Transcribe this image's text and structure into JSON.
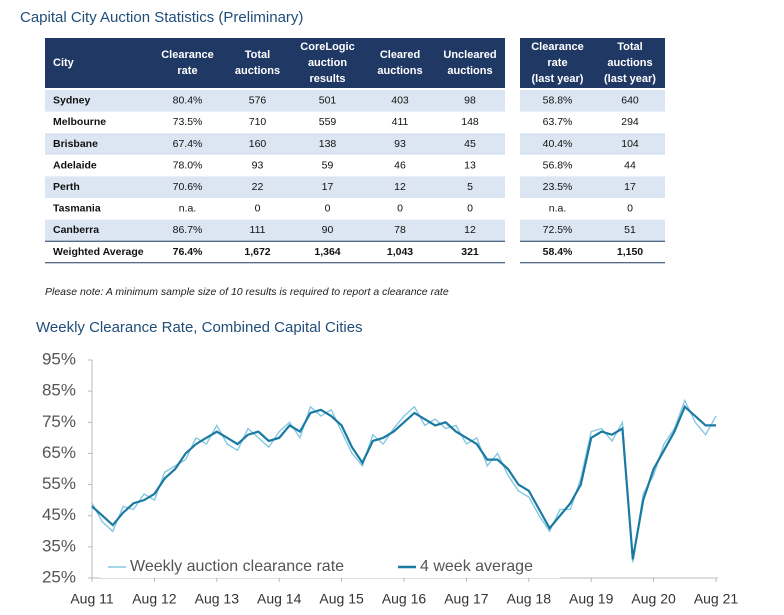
{
  "title": "Capital City Auction Statistics (Preliminary)",
  "table": {
    "headers": [
      [
        "City"
      ],
      [
        "Clearance",
        "rate"
      ],
      [
        "Total",
        "auctions"
      ],
      [
        "CoreLogic",
        "auction",
        "results"
      ],
      [
        "Cleared",
        "auctions"
      ],
      [
        "Uncleared",
        "auctions"
      ],
      [
        "Clearance",
        "rate",
        "(last year)"
      ],
      [
        "Total",
        "auctions",
        "(last year)"
      ]
    ],
    "rows": [
      [
        "Sydney",
        "80.4%",
        "576",
        "501",
        "403",
        "98",
        "58.8%",
        "640"
      ],
      [
        "Melbourne",
        "73.5%",
        "710",
        "559",
        "411",
        "148",
        "63.7%",
        "294"
      ],
      [
        "Brisbane",
        "67.4%",
        "160",
        "138",
        "93",
        "45",
        "40.4%",
        "104"
      ],
      [
        "Adelaide",
        "78.0%",
        "93",
        "59",
        "46",
        "13",
        "56.8%",
        "44"
      ],
      [
        "Perth",
        "70.6%",
        "22",
        "17",
        "12",
        "5",
        "23.5%",
        "17"
      ],
      [
        "Tasmania",
        "n.a.",
        "0",
        "0",
        "0",
        "0",
        "n.a.",
        "0"
      ],
      [
        "Canberra",
        "86.7%",
        "111",
        "90",
        "78",
        "12",
        "72.5%",
        "51"
      ],
      [
        "Weighted Average",
        "76.4%",
        "1,672",
        "1,364",
        "1,043",
        "321",
        "58.4%",
        "1,150"
      ]
    ]
  },
  "note": "Please note: A minimum sample size of 10 results is required to report a clearance rate",
  "chart_data": {
    "type": "line",
    "title": "Weekly Clearance Rate, Combined Capital Cities",
    "categories": [
      "Aug 11",
      null,
      null,
      null,
      null,
      null,
      "Aug 12",
      null,
      null,
      null,
      null,
      null,
      "Aug 13",
      null,
      null,
      null,
      null,
      null,
      "Aug 14",
      null,
      null,
      null,
      null,
      null,
      "Aug 15",
      null,
      null,
      null,
      null,
      null,
      "Aug 16",
      null,
      null,
      null,
      null,
      null,
      "Aug 17",
      null,
      null,
      null,
      null,
      null,
      "Aug 18",
      null,
      null,
      null,
      null,
      null,
      "Aug 19",
      null,
      null,
      null,
      null,
      null,
      "Aug 20",
      null,
      null,
      null,
      null,
      null,
      "Aug 21"
    ],
    "series": [
      {
        "name": "Weekly auction clearance rate",
        "color": "#86c8e0",
        "values": [
          49,
          43,
          40,
          48,
          47,
          52,
          50,
          59,
          61,
          63,
          70,
          68,
          74,
          68,
          66,
          73,
          70,
          67,
          72,
          75,
          70,
          80,
          77,
          79,
          72,
          65,
          61,
          71,
          68,
          73,
          77,
          80,
          74,
          76,
          73,
          74,
          68,
          70,
          61,
          65,
          58,
          53,
          51,
          45,
          40,
          47,
          47,
          57,
          72,
          73,
          69,
          75,
          30,
          52,
          58,
          68,
          73,
          82,
          75,
          71,
          77
        ]
      },
      {
        "name": "4 week average",
        "color": "#1b7aa2",
        "values": [
          48,
          45,
          42,
          46,
          49,
          50,
          52,
          57,
          60,
          65,
          68,
          70,
          72,
          70,
          68,
          71,
          72,
          69,
          70,
          74,
          72,
          78,
          79,
          77,
          74,
          67,
          62,
          69,
          70,
          72,
          75,
          78,
          76,
          74,
          75,
          72,
          70,
          68,
          63,
          63,
          60,
          55,
          53,
          47,
          41,
          45,
          49,
          55,
          70,
          72,
          71,
          73,
          31,
          50,
          60,
          66,
          72,
          80,
          77,
          74,
          74
        ]
      }
    ],
    "ylim": [
      25,
      95
    ],
    "yticks": [
      {
        "value": 25,
        "label": "25%"
      },
      {
        "value": 35,
        "label": "35%"
      },
      {
        "value": 45,
        "label": "45%"
      },
      {
        "value": 55,
        "label": "55%"
      },
      {
        "value": 65,
        "label": "65%"
      },
      {
        "value": 75,
        "label": "75%"
      },
      {
        "value": 85,
        "label": "85%"
      },
      {
        "value": 95,
        "label": "95%"
      }
    ]
  }
}
